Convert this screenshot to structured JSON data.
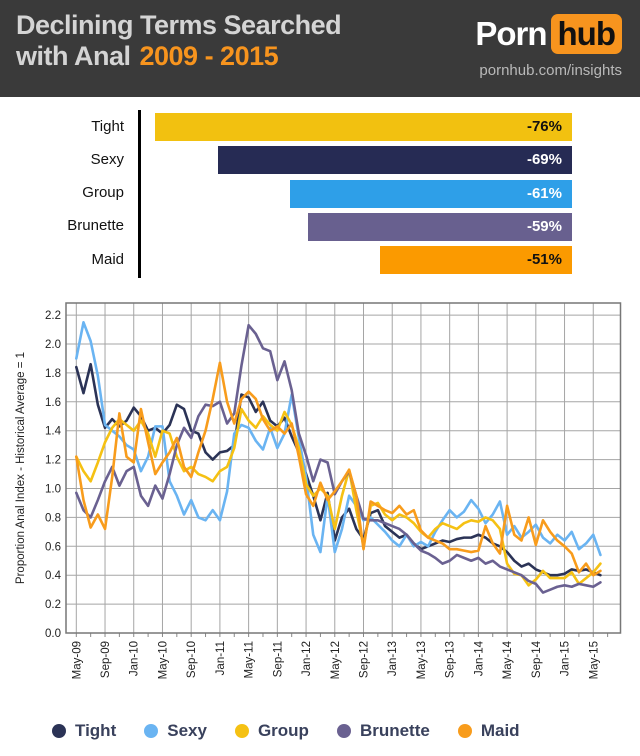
{
  "header": {
    "title_line1": "Declining Terms Searched",
    "title_line2": "with Anal",
    "title_accent": "2009 - 2015",
    "logo_porn": "Porn",
    "logo_hub": "hub",
    "site": "pornhub.com/insights"
  },
  "colors": {
    "header_bg": "#3a3a3a",
    "accent_orange": "#f7941e",
    "title_text": "#d4d4d4",
    "grid": "#a5a5a5",
    "plot_border": "#777777",
    "axis_text": "#222222",
    "legend_text": "#39415c"
  },
  "chart_data": [
    {
      "type": "bar",
      "title": "Declining Terms Searched with Anal 2009 - 2015",
      "orientation": "horizontal",
      "categories": [
        "Tight",
        "Sexy",
        "Group",
        "Brunette",
        "Maid"
      ],
      "values": [
        -76,
        -69,
        -61,
        -59,
        -51
      ],
      "value_labels": [
        "-76%",
        "-69%",
        "-61%",
        "-59%",
        "-51%"
      ],
      "bar_colors": [
        "#f2c110",
        "#262b54",
        "#2e9fe8",
        "#68608f",
        "#fb9a00"
      ],
      "value_label_colors": [
        "#111111",
        "#ffffff",
        "#ffffff",
        "#ffffff",
        "#111111"
      ]
    },
    {
      "type": "line",
      "ylabel": "Proportion Anal Index - Historical Average = 1",
      "ylim": [
        0.0,
        2.2
      ],
      "ytick_step": 0.2,
      "grid": true,
      "x_unit": "month",
      "x_start_label": "May-09",
      "x_end_label": "May-15",
      "x_tick_labels": [
        "May-09",
        "Sep-09",
        "Jan-10",
        "May-10",
        "Sep-10",
        "Jan-11",
        "May-11",
        "Sep-11",
        "Jan-12",
        "May-12",
        "Sep-12",
        "Jan-13",
        "May-13",
        "Sep-13",
        "Jan-14",
        "May-14",
        "Sep-14",
        "Jan-15",
        "May-15"
      ],
      "series": [
        {
          "name": "Tight",
          "color": "#2b3356",
          "values": [
            1.84,
            1.66,
            1.86,
            1.58,
            1.42,
            1.48,
            1.43,
            1.47,
            1.56,
            1.5,
            1.4,
            1.42,
            1.38,
            1.44,
            1.58,
            1.55,
            1.4,
            1.38,
            1.25,
            1.2,
            1.25,
            1.26,
            1.3,
            1.65,
            1.63,
            1.53,
            1.6,
            1.47,
            1.43,
            1.49,
            1.36,
            1.25,
            1.1,
            0.95,
            0.78,
            0.97,
            0.64,
            0.8,
            0.86,
            0.72,
            0.65,
            0.83,
            0.85,
            0.74,
            0.7,
            0.66,
            0.68,
            0.62,
            0.58,
            0.6,
            0.62,
            0.64,
            0.63,
            0.65,
            0.66,
            0.66,
            0.68,
            0.66,
            0.62,
            0.6,
            0.56,
            0.5,
            0.46,
            0.48,
            0.44,
            0.42,
            0.4,
            0.4,
            0.41,
            0.44,
            0.43,
            0.44,
            0.42,
            0.4
          ]
        },
        {
          "name": "Sexy",
          "color": "#6ab4f2",
          "values": [
            1.9,
            2.15,
            2.02,
            1.78,
            1.44,
            1.4,
            1.36,
            1.3,
            1.27,
            1.12,
            1.22,
            1.43,
            1.43,
            1.05,
            0.95,
            0.82,
            0.92,
            0.8,
            0.78,
            0.85,
            0.78,
            0.98,
            1.38,
            1.44,
            1.42,
            1.33,
            1.27,
            1.42,
            1.28,
            1.38,
            1.65,
            1.35,
            1.08,
            0.68,
            0.56,
            0.95,
            0.56,
            0.72,
            0.95,
            0.88,
            0.78,
            0.8,
            0.75,
            0.7,
            0.64,
            0.6,
            0.68,
            0.6,
            0.63,
            0.6,
            0.7,
            0.78,
            0.85,
            0.8,
            0.84,
            0.92,
            0.86,
            0.76,
            0.82,
            0.91,
            0.68,
            0.74,
            0.66,
            0.7,
            0.75,
            0.66,
            0.62,
            0.68,
            0.64,
            0.7,
            0.58,
            0.62,
            0.68,
            0.54
          ]
        },
        {
          "name": "Group",
          "color": "#f5c113",
          "values": [
            1.22,
            1.12,
            1.05,
            1.18,
            1.32,
            1.42,
            1.48,
            1.44,
            1.4,
            1.47,
            1.38,
            1.22,
            1.4,
            1.38,
            1.22,
            1.12,
            1.15,
            1.1,
            1.08,
            1.05,
            1.12,
            1.15,
            1.28,
            1.55,
            1.47,
            1.42,
            1.5,
            1.44,
            1.4,
            1.53,
            1.44,
            1.28,
            1.03,
            0.95,
            1.0,
            0.95,
            0.72,
            0.95,
            1.13,
            0.85,
            0.6,
            0.88,
            0.9,
            0.82,
            0.78,
            0.82,
            0.8,
            0.76,
            0.7,
            0.66,
            0.72,
            0.76,
            0.74,
            0.72,
            0.76,
            0.78,
            0.77,
            0.8,
            0.78,
            0.72,
            0.48,
            0.41,
            0.4,
            0.33,
            0.37,
            0.43,
            0.38,
            0.38,
            0.38,
            0.42,
            0.34,
            0.38,
            0.42,
            0.48
          ]
        },
        {
          "name": "Brunette",
          "color": "#6a6191",
          "values": [
            0.97,
            0.85,
            0.8,
            0.92,
            1.05,
            1.15,
            1.02,
            1.12,
            1.15,
            0.95,
            0.88,
            1.02,
            0.93,
            1.1,
            1.3,
            1.42,
            1.35,
            1.5,
            1.58,
            1.57,
            1.6,
            1.45,
            1.52,
            1.85,
            2.13,
            2.07,
            1.97,
            1.95,
            1.75,
            1.88,
            1.68,
            1.38,
            1.23,
            1.05,
            1.2,
            1.18,
            0.96,
            1.05,
            1.12,
            0.95,
            0.79,
            0.78,
            0.78,
            0.76,
            0.74,
            0.72,
            0.68,
            0.62,
            0.57,
            0.55,
            0.52,
            0.48,
            0.5,
            0.54,
            0.52,
            0.5,
            0.52,
            0.48,
            0.5,
            0.46,
            0.44,
            0.42,
            0.4,
            0.36,
            0.34,
            0.28,
            0.3,
            0.32,
            0.33,
            0.32,
            0.34,
            0.33,
            0.32,
            0.35
          ]
        },
        {
          "name": "Maid",
          "color": "#f89c1c",
          "values": [
            1.22,
            0.92,
            0.73,
            0.82,
            0.72,
            1.08,
            1.52,
            1.22,
            1.18,
            1.55,
            1.32,
            1.1,
            1.18,
            1.25,
            1.35,
            1.15,
            1.08,
            1.25,
            1.4,
            1.62,
            1.87,
            1.6,
            1.45,
            1.62,
            1.67,
            1.62,
            1.48,
            1.4,
            1.43,
            1.38,
            1.45,
            1.22,
            0.96,
            0.88,
            1.04,
            0.92,
            0.98,
            1.05,
            1.13,
            0.95,
            0.58,
            0.91,
            0.88,
            0.85,
            0.83,
            0.88,
            0.82,
            0.85,
            0.71,
            0.66,
            0.64,
            0.62,
            0.58,
            0.58,
            0.57,
            0.56,
            0.57,
            0.74,
            0.62,
            0.55,
            0.88,
            0.68,
            0.64,
            0.8,
            0.61,
            0.78,
            0.7,
            0.64,
            0.6,
            0.55,
            0.42,
            0.48,
            0.4,
            0.43
          ]
        }
      ]
    }
  ],
  "legend": {
    "items": [
      {
        "label": "Tight",
        "color": "#2b3356"
      },
      {
        "label": "Sexy",
        "color": "#6ab4f2"
      },
      {
        "label": "Group",
        "color": "#f5c113"
      },
      {
        "label": "Brunette",
        "color": "#6a6191"
      },
      {
        "label": "Maid",
        "color": "#f89c1c"
      }
    ]
  }
}
